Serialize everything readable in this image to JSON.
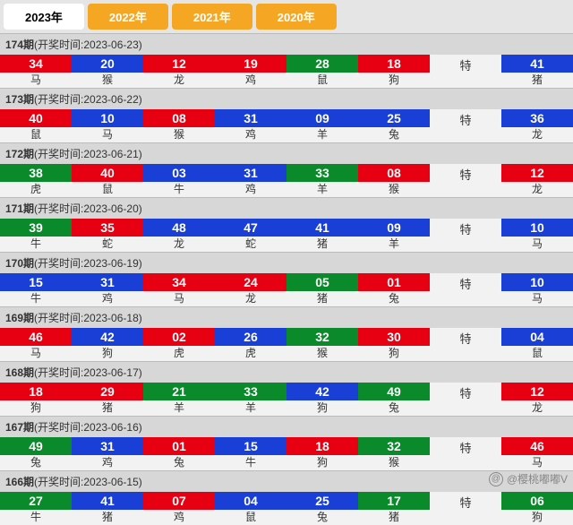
{
  "years": [
    {
      "label": "2023年",
      "active": true
    },
    {
      "label": "2022年",
      "active": false
    },
    {
      "label": "2021年",
      "active": false
    },
    {
      "label": "2020年",
      "active": false
    }
  ],
  "special_label": "特",
  "periods": [
    {
      "no": "174",
      "date": "2023-06-23",
      "cells": [
        {
          "n": "34",
          "c": "red",
          "z": "马"
        },
        {
          "n": "20",
          "c": "blue",
          "z": "猴"
        },
        {
          "n": "12",
          "c": "red",
          "z": "龙"
        },
        {
          "n": "19",
          "c": "red",
          "z": "鸡"
        },
        {
          "n": "28",
          "c": "green",
          "z": "鼠"
        },
        {
          "n": "18",
          "c": "red",
          "z": "狗"
        }
      ],
      "special": {
        "n": "41",
        "c": "blue",
        "z": "猪"
      }
    },
    {
      "no": "173",
      "date": "2023-06-22",
      "cells": [
        {
          "n": "40",
          "c": "red",
          "z": "鼠"
        },
        {
          "n": "10",
          "c": "blue",
          "z": "马"
        },
        {
          "n": "08",
          "c": "red",
          "z": "猴"
        },
        {
          "n": "31",
          "c": "blue",
          "z": "鸡"
        },
        {
          "n": "09",
          "c": "blue",
          "z": "羊"
        },
        {
          "n": "25",
          "c": "blue",
          "z": "兔"
        }
      ],
      "special": {
        "n": "36",
        "c": "blue",
        "z": "龙"
      }
    },
    {
      "no": "172",
      "date": "2023-06-21",
      "cells": [
        {
          "n": "38",
          "c": "green",
          "z": "虎"
        },
        {
          "n": "40",
          "c": "red",
          "z": "鼠"
        },
        {
          "n": "03",
          "c": "blue",
          "z": "牛"
        },
        {
          "n": "31",
          "c": "blue",
          "z": "鸡"
        },
        {
          "n": "33",
          "c": "green",
          "z": "羊"
        },
        {
          "n": "08",
          "c": "red",
          "z": "猴"
        }
      ],
      "special": {
        "n": "12",
        "c": "red",
        "z": "龙"
      }
    },
    {
      "no": "171",
      "date": "2023-06-20",
      "cells": [
        {
          "n": "39",
          "c": "green",
          "z": "牛"
        },
        {
          "n": "35",
          "c": "red",
          "z": "蛇"
        },
        {
          "n": "48",
          "c": "blue",
          "z": "龙"
        },
        {
          "n": "47",
          "c": "blue",
          "z": "蛇"
        },
        {
          "n": "41",
          "c": "blue",
          "z": "猪"
        },
        {
          "n": "09",
          "c": "blue",
          "z": "羊"
        }
      ],
      "special": {
        "n": "10",
        "c": "blue",
        "z": "马"
      }
    },
    {
      "no": "170",
      "date": "2023-06-19",
      "cells": [
        {
          "n": "15",
          "c": "blue",
          "z": "牛"
        },
        {
          "n": "31",
          "c": "blue",
          "z": "鸡"
        },
        {
          "n": "34",
          "c": "red",
          "z": "马"
        },
        {
          "n": "24",
          "c": "red",
          "z": "龙"
        },
        {
          "n": "05",
          "c": "green",
          "z": "猪"
        },
        {
          "n": "01",
          "c": "red",
          "z": "兔"
        }
      ],
      "special": {
        "n": "10",
        "c": "blue",
        "z": "马"
      }
    },
    {
      "no": "169",
      "date": "2023-06-18",
      "cells": [
        {
          "n": "46",
          "c": "red",
          "z": "马"
        },
        {
          "n": "42",
          "c": "blue",
          "z": "狗"
        },
        {
          "n": "02",
          "c": "red",
          "z": "虎"
        },
        {
          "n": "26",
          "c": "blue",
          "z": "虎"
        },
        {
          "n": "32",
          "c": "green",
          "z": "猴"
        },
        {
          "n": "30",
          "c": "red",
          "z": "狗"
        }
      ],
      "special": {
        "n": "04",
        "c": "blue",
        "z": "鼠"
      }
    },
    {
      "no": "168",
      "date": "2023-06-17",
      "cells": [
        {
          "n": "18",
          "c": "red",
          "z": "狗"
        },
        {
          "n": "29",
          "c": "red",
          "z": "猪"
        },
        {
          "n": "21",
          "c": "green",
          "z": "羊"
        },
        {
          "n": "33",
          "c": "green",
          "z": "羊"
        },
        {
          "n": "42",
          "c": "blue",
          "z": "狗"
        },
        {
          "n": "49",
          "c": "green",
          "z": "兔"
        }
      ],
      "special": {
        "n": "12",
        "c": "red",
        "z": "龙"
      }
    },
    {
      "no": "167",
      "date": "2023-06-16",
      "cells": [
        {
          "n": "49",
          "c": "green",
          "z": "兔"
        },
        {
          "n": "31",
          "c": "blue",
          "z": "鸡"
        },
        {
          "n": "01",
          "c": "red",
          "z": "兔"
        },
        {
          "n": "15",
          "c": "blue",
          "z": "牛"
        },
        {
          "n": "18",
          "c": "red",
          "z": "狗"
        },
        {
          "n": "32",
          "c": "green",
          "z": "猴"
        }
      ],
      "special": {
        "n": "46",
        "c": "red",
        "z": "马"
      }
    },
    {
      "no": "166",
      "date": "2023-06-15",
      "cells": [
        {
          "n": "27",
          "c": "green",
          "z": "牛"
        },
        {
          "n": "41",
          "c": "blue",
          "z": "猪"
        },
        {
          "n": "07",
          "c": "red",
          "z": "鸡"
        },
        {
          "n": "04",
          "c": "blue",
          "z": "鼠"
        },
        {
          "n": "25",
          "c": "blue",
          "z": "兔"
        },
        {
          "n": "17",
          "c": "green",
          "z": "猪"
        }
      ],
      "special": {
        "n": "06",
        "c": "green",
        "z": "狗"
      }
    }
  ],
  "watermark": "@樱桃嘟嘟V"
}
